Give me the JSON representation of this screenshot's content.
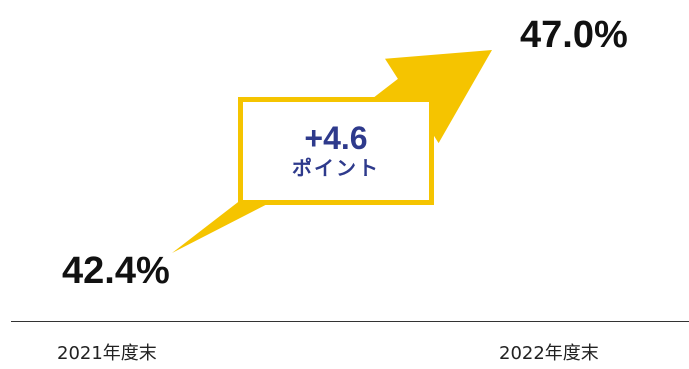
{
  "chart_data": {
    "type": "line",
    "categories": [
      "2021年度末",
      "2022年度末"
    ],
    "series": [
      {
        "values": [
          42.4,
          47.0
        ]
      }
    ],
    "data_labels": [
      "42.4%",
      "47.0%"
    ],
    "annotation": {
      "delta_text": "+4.6",
      "unit_text": "ポイント"
    },
    "title": "",
    "xlabel": "",
    "ylabel": "",
    "colors": {
      "arrow": "#F5C400",
      "annotation_text": "#2E3A8C",
      "value_text": "#111111"
    },
    "grid": false,
    "legend": "none"
  }
}
